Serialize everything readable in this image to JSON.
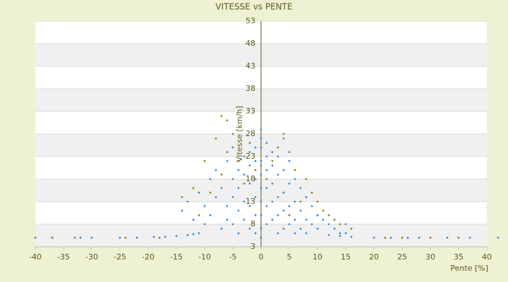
{
  "chart_data": {
    "type": "scatter",
    "title": "VITESSE vs PENTE",
    "x_label": "Pente [%]",
    "y_label": "Vitesse [km/h]",
    "xlim": [
      -40,
      40
    ],
    "ylim": [
      3,
      53
    ],
    "xticks": [
      -40,
      -35,
      -30,
      -25,
      -20,
      -15,
      -10,
      -5,
      0,
      5,
      10,
      15,
      20,
      25,
      30,
      35,
      40
    ],
    "yticks": [
      3,
      8,
      13,
      18,
      23,
      28,
      33,
      38,
      43,
      48,
      53
    ],
    "grid": true,
    "band_color": "#f0f0f0",
    "series": [
      {
        "color": "#3a8fd9",
        "x": [
          -40,
          -37,
          -32,
          -30,
          -25,
          -22,
          -19,
          -17,
          -15,
          -13,
          -12,
          -11,
          20,
          23,
          26,
          28,
          33,
          37,
          42,
          16,
          14,
          12,
          -14,
          -13,
          -12,
          -11,
          -10,
          -10,
          -9,
          -9,
          -8,
          -8,
          -7,
          -7,
          -6,
          -6,
          -6,
          -5,
          -5,
          -5,
          -5,
          -4,
          -4,
          -4,
          -4,
          -3,
          -3,
          -3,
          -3,
          -2,
          -2,
          -2,
          -2,
          -2,
          -1,
          -1,
          -1,
          -1,
          -1,
          -1,
          0,
          0,
          0,
          0,
          0,
          0,
          0,
          0,
          0,
          0,
          1,
          1,
          1,
          1,
          1,
          1,
          2,
          2,
          2,
          2,
          2,
          3,
          3,
          3,
          3,
          3,
          4,
          4,
          4,
          4,
          4,
          5,
          5,
          5,
          5,
          6,
          6,
          6,
          6,
          7,
          7,
          7,
          8,
          8,
          8,
          9,
          9,
          10,
          10,
          11,
          12,
          13,
          14,
          15,
          15
        ],
        "values": [
          5,
          5,
          5,
          5,
          5,
          5,
          5.2,
          5.2,
          5.4,
          5.6,
          5.8,
          6,
          5,
          5,
          5,
          5,
          5,
          5,
          5,
          5.2,
          5.4,
          5.6,
          11,
          13,
          9,
          15,
          12,
          8,
          18,
          10,
          14,
          20,
          7,
          16,
          22,
          12,
          9,
          25,
          18,
          14,
          8,
          20,
          16,
          11,
          6,
          23,
          19,
          13,
          9,
          24,
          21,
          17,
          12,
          7,
          25,
          22,
          18,
          14,
          10,
          6,
          29,
          27,
          25,
          22,
          19,
          16,
          13,
          10,
          7,
          5,
          26,
          23,
          20,
          16,
          12,
          8,
          24,
          21,
          17,
          13,
          9,
          23,
          19,
          14,
          10,
          6,
          27,
          20,
          15,
          11,
          7,
          22,
          17,
          12,
          8,
          18,
          13,
          9,
          6,
          16,
          11,
          7,
          14,
          9,
          6,
          12,
          8,
          10,
          7,
          9,
          8,
          7,
          6,
          8,
          6
        ]
      },
      {
        "color": "#8a8a1a",
        "x": [
          -7,
          -6,
          -5,
          -8,
          -12,
          -10,
          -9,
          -7,
          -6,
          -4,
          -3,
          -2,
          -1,
          0,
          1,
          2,
          3,
          4,
          5,
          5,
          6,
          7,
          8,
          9,
          10,
          11,
          12,
          13,
          14,
          -37,
          -33,
          -24,
          -18,
          22,
          25,
          30,
          35,
          -14,
          -11,
          16
        ],
        "values": [
          32,
          31,
          28,
          27,
          16,
          22,
          15,
          19,
          24,
          22,
          17,
          26,
          20,
          21,
          18,
          22,
          25,
          28,
          24,
          10,
          20,
          13,
          18,
          15,
          13,
          11,
          10,
          9,
          8,
          5,
          5,
          5,
          5,
          5,
          5,
          5,
          5,
          14,
          10,
          7
        ]
      }
    ]
  }
}
